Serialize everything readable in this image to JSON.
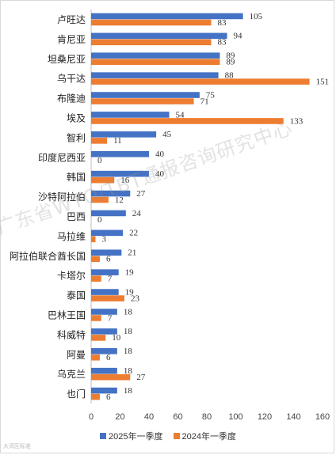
{
  "chart_data": {
    "type": "bar",
    "orientation": "horizontal",
    "categories": [
      "卢旺达",
      "肯尼亚",
      "坦桑尼亚",
      "乌干达",
      "布隆迪",
      "埃及",
      "智利",
      "印度尼西亚",
      "韩国",
      "沙特阿拉伯",
      "巴西",
      "马拉维",
      "阿拉伯联合酋长国",
      "卡塔尔",
      "泰国",
      "巴林王国",
      "科威特",
      "阿曼",
      "乌克兰",
      "也门"
    ],
    "series": [
      {
        "name": "2025年一季度",
        "color": "#4472c4",
        "values": [
          105,
          94,
          89,
          88,
          75,
          54,
          45,
          40,
          40,
          27,
          24,
          22,
          21,
          19,
          19,
          18,
          18,
          18,
          18,
          18
        ]
      },
      {
        "name": "2024年一季度",
        "color": "#ed7d31",
        "values": [
          83,
          83,
          89,
          151,
          71,
          133,
          11,
          0,
          16,
          12,
          0,
          3,
          6,
          7,
          23,
          7,
          10,
          6,
          27,
          6
        ]
      }
    ],
    "xlim": [
      0,
      160
    ],
    "xticks": [
      "0",
      "20",
      "40",
      "60",
      "80",
      "100",
      "120",
      "140",
      "160"
    ],
    "grid": false,
    "legend": "bottom"
  },
  "watermark": "广东省WTO/TBT通报咨询研究中心",
  "logo_text": "大湾区标准"
}
